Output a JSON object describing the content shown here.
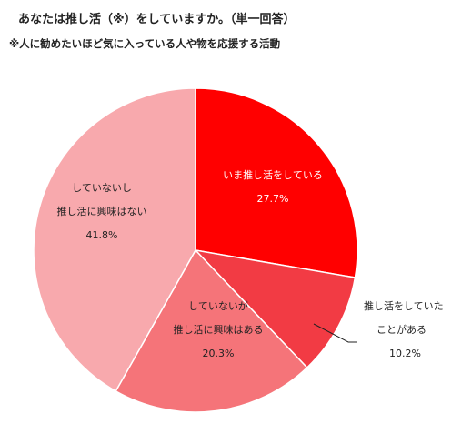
{
  "title": "あなたは推し活（※）をしていますか。（単一回答）",
  "subtitle": "※人に勧めたいほど気に入っている人や物を応援する活動",
  "chart_data": {
    "type": "pie",
    "slices": [
      {
        "label_lines": [
          "いま推し活をしている"
        ],
        "value_text": "27.7%",
        "value": 27.7,
        "color": "#ff0000",
        "text_color": "#ffffff",
        "label_outside": false
      },
      {
        "label_lines": [
          "推し活をしていた",
          "ことがある"
        ],
        "value_text": "10.2%",
        "value": 10.2,
        "color": "#f23b44",
        "text_color": "#222222",
        "label_outside": true
      },
      {
        "label_lines": [
          "していないが",
          "推し活に興味はある"
        ],
        "value_text": "20.3%",
        "value": 20.3,
        "color": "#f57479",
        "text_color": "#222222",
        "label_outside": false
      },
      {
        "label_lines": [
          "していないし",
          "推し活に興味はない"
        ],
        "value_text": "41.8%",
        "value": 41.8,
        "color": "#f8a9ad",
        "text_color": "#222222",
        "label_outside": false
      }
    ]
  }
}
